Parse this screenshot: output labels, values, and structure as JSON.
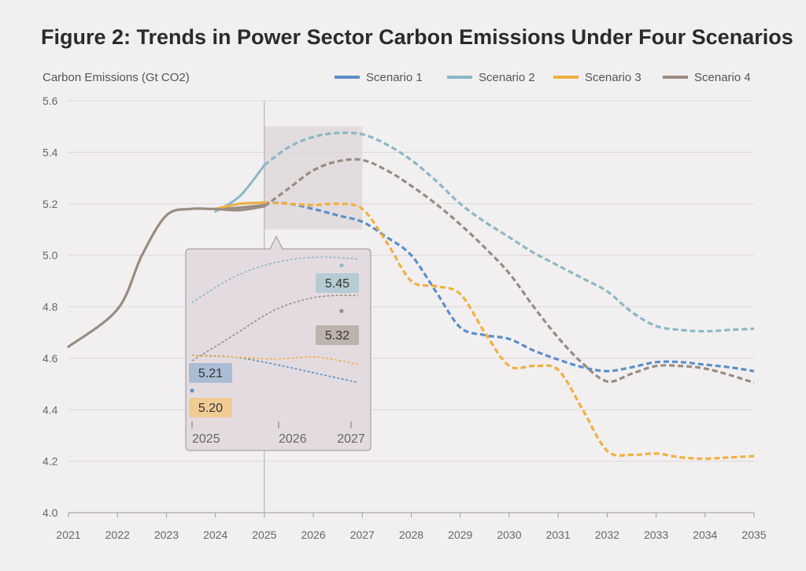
{
  "chart_data": {
    "type": "line",
    "title": "Figure 2: Trends in Power Sector Carbon Emissions Under Four Scenarios",
    "ylabel": "Carbon Emissions (Gt CO2)",
    "xlabel": "",
    "ylim": [
      4.0,
      5.6
    ],
    "xlim": [
      2021,
      2035
    ],
    "y_ticks": [
      "4.0",
      "4.2",
      "4.4",
      "4.6",
      "4.8",
      "5.0",
      "5.2",
      "5.4",
      "5.6"
    ],
    "x_ticks": [
      "2021",
      "2022",
      "2023",
      "2024",
      "2025",
      "2026",
      "2027",
      "2028",
      "2029",
      "2030",
      "2031",
      "2032",
      "2033",
      "2034",
      "2035"
    ],
    "grid": "horizontal",
    "legend": "top-right",
    "history": {
      "color": "#9a8b80",
      "x": [
        2021,
        2022,
        2022.5,
        2023,
        2023.5,
        2024,
        2024.5,
        2025
      ],
      "y": [
        4.645,
        4.79,
        5.0,
        5.155,
        5.18,
        5.18,
        5.185,
        5.195
      ]
    },
    "series": [
      {
        "name": "Scenario 1",
        "color": "#5b8fc7",
        "x_solid": [
          2024,
          2024.5,
          2025
        ],
        "y_solid": [
          5.18,
          5.2,
          5.205
        ],
        "x": [
          2025,
          2025.5,
          2026,
          2026.5,
          2027,
          2027.5,
          2028,
          2028.5,
          2029,
          2029.5,
          2030,
          2030.5,
          2031,
          2031.5,
          2032,
          2032.5,
          2033,
          2033.5,
          2034,
          2034.5,
          2035
        ],
        "y": [
          5.205,
          5.2,
          5.18,
          5.155,
          5.13,
          5.07,
          5.0,
          4.86,
          4.72,
          4.69,
          4.675,
          4.63,
          4.595,
          4.565,
          4.55,
          4.565,
          4.585,
          4.585,
          4.575,
          4.565,
          4.55
        ]
      },
      {
        "name": "Scenario 2",
        "color": "#8ab8c6",
        "x_solid": [
          2024,
          2024.5,
          2025
        ],
        "y_solid": [
          5.17,
          5.23,
          5.35
        ],
        "x": [
          2025,
          2025.5,
          2026,
          2026.5,
          2027,
          2027.5,
          2028,
          2028.5,
          2029,
          2029.5,
          2030,
          2030.5,
          2031,
          2031.5,
          2032,
          2032.5,
          2033,
          2033.5,
          2034,
          2034.5,
          2035
        ],
        "y": [
          5.35,
          5.42,
          5.46,
          5.475,
          5.47,
          5.43,
          5.37,
          5.29,
          5.2,
          5.13,
          5.07,
          5.01,
          4.96,
          4.91,
          4.86,
          4.78,
          4.725,
          4.71,
          4.705,
          4.71,
          4.715
        ]
      },
      {
        "name": "Scenario 3",
        "color": "#f0b040",
        "x_solid": [
          2024,
          2024.5,
          2025
        ],
        "y_solid": [
          5.18,
          5.2,
          5.205
        ],
        "x": [
          2025,
          2025.5,
          2026,
          2026.5,
          2027,
          2027.5,
          2028,
          2028.5,
          2029,
          2029.5,
          2030,
          2030.5,
          2031,
          2031.5,
          2032,
          2032.5,
          2033,
          2033.5,
          2034,
          2034.5,
          2035
        ],
        "y": [
          5.205,
          5.2,
          5.195,
          5.2,
          5.18,
          5.05,
          4.9,
          4.88,
          4.85,
          4.7,
          4.57,
          4.57,
          4.555,
          4.4,
          4.24,
          4.225,
          4.23,
          4.215,
          4.21,
          4.215,
          4.22
        ]
      },
      {
        "name": "Scenario 4",
        "color": "#9a8b80",
        "x_solid": [
          2024,
          2024.5,
          2025
        ],
        "y_solid": [
          5.18,
          5.175,
          5.19
        ],
        "x": [
          2025,
          2025.5,
          2026,
          2026.5,
          2027,
          2027.5,
          2028,
          2028.5,
          2029,
          2029.5,
          2030,
          2030.5,
          2031,
          2031.5,
          2032,
          2032.5,
          2033,
          2033.5,
          2034,
          2034.5,
          2035
        ],
        "y": [
          5.19,
          5.26,
          5.33,
          5.365,
          5.37,
          5.33,
          5.27,
          5.2,
          5.12,
          5.03,
          4.93,
          4.8,
          4.68,
          4.58,
          4.51,
          4.54,
          4.57,
          4.57,
          4.56,
          4.535,
          4.505
        ]
      }
    ],
    "marker": {
      "x": 2025
    },
    "highlight_range": {
      "x": [
        2025,
        2027
      ],
      "y": [
        5.1,
        5.5
      ]
    },
    "inset": {
      "x_ticks": [
        "2025",
        "2026",
        "2027"
      ],
      "labels": [
        {
          "series": "Scenario 1",
          "value": "5.21"
        },
        {
          "series": "Scenario 2",
          "value": "5.45"
        },
        {
          "series": "Scenario 3",
          "value": "5.20"
        },
        {
          "series": "Scenario 4",
          "value": "5.32"
        }
      ]
    }
  }
}
